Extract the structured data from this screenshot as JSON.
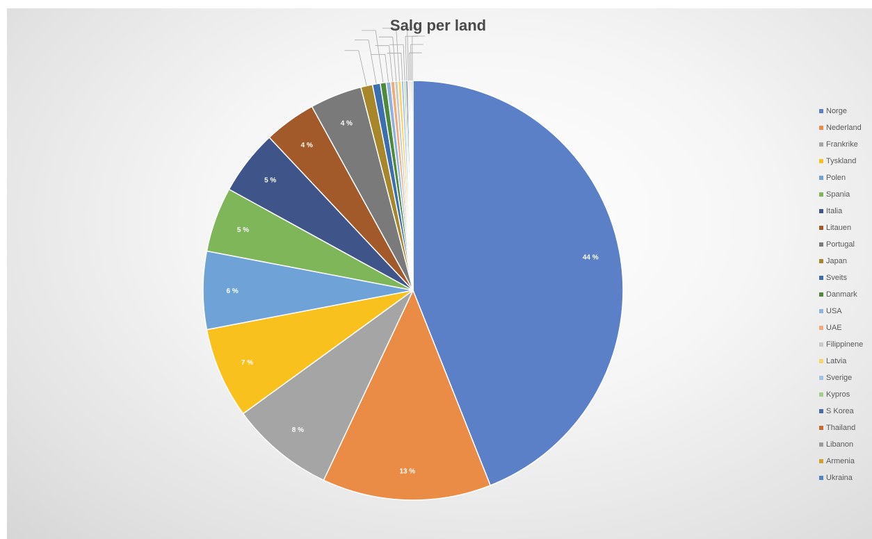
{
  "chart_data": {
    "type": "pie",
    "title": "Salg per land",
    "legend_position": "right",
    "categories": [
      "Norge",
      "Nederland",
      "Frankrike",
      "Tyskland",
      "Polen",
      "Spania",
      "Italia",
      "Litauen",
      "Portugal",
      "Japan",
      "Sveits",
      "Danmark",
      "USA",
      "UAE",
      "Filippinene",
      "Latvia",
      "Sverige",
      "Kypros",
      "S Korea",
      "Thailand",
      "Libanon",
      "Armenia",
      "Ukraina"
    ],
    "values": [
      44,
      13,
      8,
      7,
      6,
      5,
      5,
      4,
      4,
      0.9,
      0.6,
      0.45,
      0.35,
      0.3,
      0.25,
      0.25,
      0.2,
      0.15,
      0.15,
      0.1,
      0.1,
      0.1,
      0.1
    ],
    "data_labels": [
      "44 %",
      "13 %",
      "8 %",
      "7 %",
      "6 %",
      "5 %",
      "5 %",
      "4 %",
      "4 %",
      "",
      "",
      "",
      "",
      "",
      "",
      "",
      "",
      "",
      "",
      "",
      "",
      "",
      ""
    ],
    "colors": [
      "#5B80C8",
      "#EB8C46",
      "#A5A5A5",
      "#F9C11E",
      "#6FA3D8",
      "#7FB65A",
      "#3F5489",
      "#A35A2A",
      "#7A7A7A",
      "#A8862A",
      "#3C6FAF",
      "#4E8A3A",
      "#8FB3E0",
      "#F3A97A",
      "#C8C8C8",
      "#FAD367",
      "#9EC2E8",
      "#A4CD89",
      "#4A6AAF",
      "#C76B30",
      "#9B9B9B",
      "#D4A02A",
      "#4A86C8"
    ]
  }
}
